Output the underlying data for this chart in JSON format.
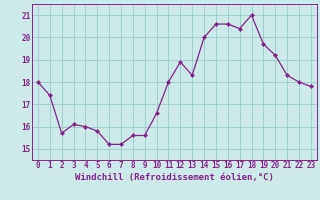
{
  "x": [
    0,
    1,
    2,
    3,
    4,
    5,
    6,
    7,
    8,
    9,
    10,
    11,
    12,
    13,
    14,
    15,
    16,
    17,
    18,
    19,
    20,
    21,
    22,
    23
  ],
  "y": [
    18.0,
    17.4,
    15.7,
    16.1,
    16.0,
    15.8,
    15.2,
    15.2,
    15.6,
    15.6,
    16.6,
    18.0,
    18.9,
    18.3,
    20.0,
    20.6,
    20.6,
    20.4,
    21.0,
    19.7,
    19.2,
    18.3,
    18.0,
    17.8
  ],
  "line_color": "#882288",
  "marker": "D",
  "marker_size": 2.0,
  "linewidth": 0.9,
  "bg_color": "#cceaea",
  "grid_color": "#99cccc",
  "xlabel": "Windchill (Refroidissement éolien,°C)",
  "ylim": [
    14.5,
    21.5
  ],
  "xlim": [
    -0.5,
    23.5
  ],
  "yticks": [
    15,
    16,
    17,
    18,
    19,
    20,
    21
  ],
  "xticks": [
    0,
    1,
    2,
    3,
    4,
    5,
    6,
    7,
    8,
    9,
    10,
    11,
    12,
    13,
    14,
    15,
    16,
    17,
    18,
    19,
    20,
    21,
    22,
    23
  ],
  "tick_fontsize": 5.5,
  "xlabel_fontsize": 6.5
}
